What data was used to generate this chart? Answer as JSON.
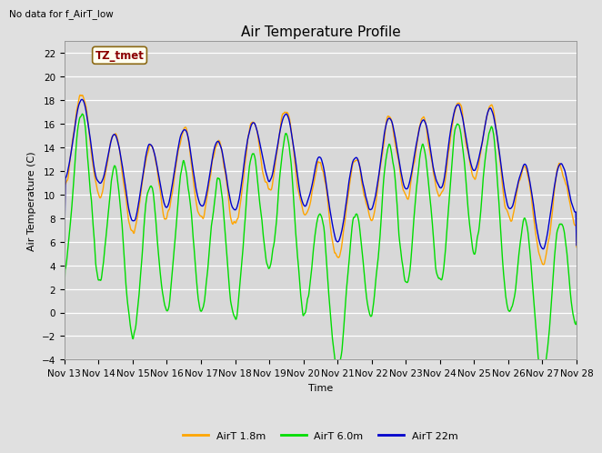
{
  "title": "Air Temperature Profile",
  "subtitle": "No data for f_AirT_low",
  "ylabel": "Air Temperature (C)",
  "xlabel": "Time",
  "annotation": "TZ_tmet",
  "ylim": [
    -4,
    23
  ],
  "yticks": [
    -4,
    -2,
    0,
    2,
    4,
    6,
    8,
    10,
    12,
    14,
    16,
    18,
    20,
    22
  ],
  "xtick_labels": [
    "Nov 13",
    "Nov 14",
    "Nov 15",
    "Nov 16",
    "Nov 17",
    "Nov 18",
    "Nov 19",
    "Nov 20",
    "Nov 21",
    "Nov 22",
    "Nov 23",
    "Nov 24",
    "Nov 25",
    "Nov 26",
    "Nov 27",
    "Nov 28"
  ],
  "legend": [
    "AirT 1.8m",
    "AirT 6.0m",
    "AirT 22m"
  ],
  "colors": {
    "airt18": "#FFA500",
    "airt60": "#00DD00",
    "airt22": "#0000CC"
  },
  "background_color": "#E0E0E0",
  "plot_bg_color": "#D8D8D8",
  "grid_color": "#FFFFFF",
  "linewidth": 1.0,
  "title_fontsize": 11,
  "label_fontsize": 8,
  "tick_fontsize": 7.5,
  "legend_fontsize": 8
}
